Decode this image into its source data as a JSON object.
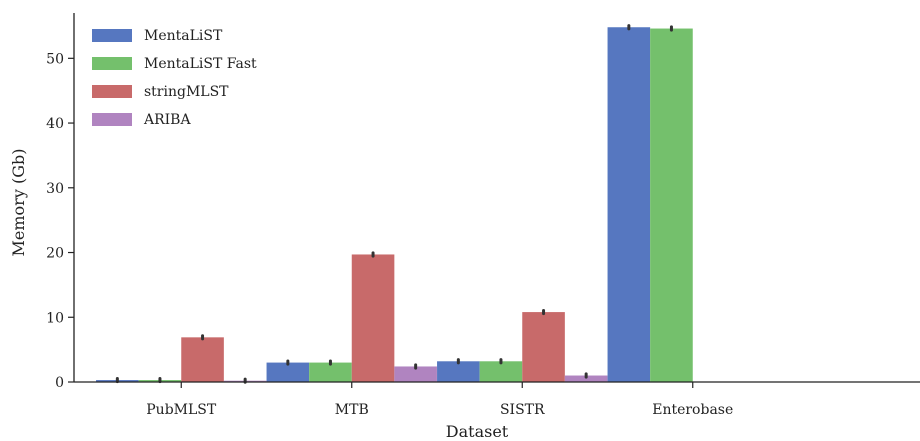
{
  "chart_data": {
    "type": "bar",
    "xlabel": "Dataset",
    "ylabel": "Memory (Gb)",
    "categories": [
      "PubMLST",
      "MTB",
      "SISTR",
      "Enterobase"
    ],
    "ylim": [
      0,
      57
    ],
    "yticks": [
      0,
      10,
      20,
      30,
      40,
      50
    ],
    "grid": false,
    "legend_position": "top-left",
    "error_bars": true,
    "series": [
      {
        "name": "MentaLiST",
        "color": "#5677c0",
        "values": [
          0.3,
          3.0,
          3.2,
          54.8
        ]
      },
      {
        "name": "MentaLiST Fast",
        "color": "#74c06c",
        "values": [
          0.3,
          3.0,
          3.2,
          54.6
        ]
      },
      {
        "name": "stringMLST",
        "color": "#c86a6a",
        "values": [
          6.9,
          19.7,
          10.8,
          null
        ]
      },
      {
        "name": "ARIBA",
        "color": "#b084c0",
        "values": [
          0.2,
          2.4,
          1.0,
          null
        ]
      }
    ]
  }
}
